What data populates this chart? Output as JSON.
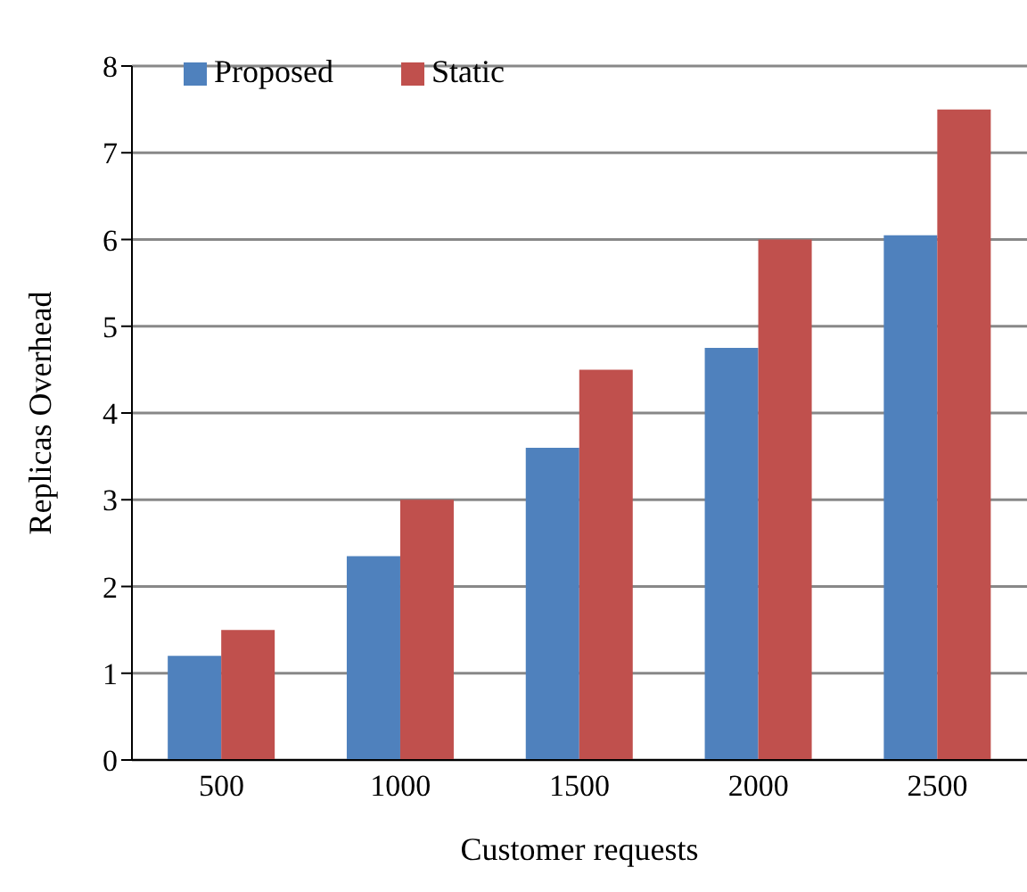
{
  "chart_data": {
    "type": "bar",
    "xlabel": "Customer requests",
    "ylabel": "Replicas Overhead",
    "categories": [
      "500",
      "1000",
      "1500",
      "2000",
      "2500"
    ],
    "series": [
      {
        "name": "Proposed",
        "color": "#4f81bd",
        "values": [
          1.2,
          2.35,
          3.6,
          4.75,
          6.05
        ]
      },
      {
        "name": "Static",
        "color": "#c0504d",
        "values": [
          1.5,
          3,
          4.5,
          6,
          7.5
        ]
      }
    ],
    "ylim": [
      0,
      8
    ],
    "yticks": [
      0,
      1,
      2,
      3,
      4,
      5,
      6,
      7,
      8
    ],
    "grid": "y",
    "legend": "top left"
  }
}
